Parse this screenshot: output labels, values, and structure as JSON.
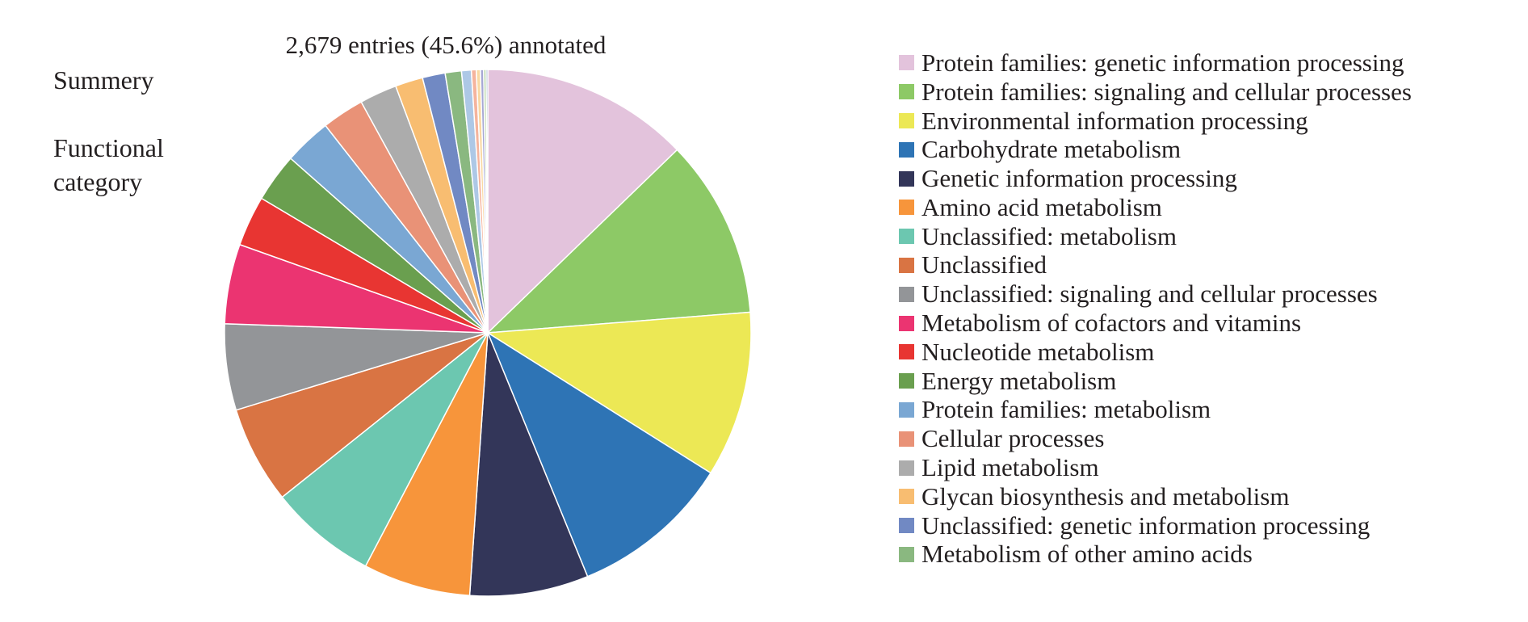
{
  "side_labels": {
    "summery": "Summery",
    "functional_category": "Functional category"
  },
  "chart_data": {
    "type": "pie",
    "title": "2,679 entries (45.6%) annotated",
    "start": "12 o'clock",
    "direction": "clockwise",
    "slices": [
      {
        "label": "Protein families: genetic information processing",
        "value": 12.8,
        "color": "#e3c3dc"
      },
      {
        "label": "Protein families: signaling and cellular processes",
        "value": 11.0,
        "color": "#8dc966"
      },
      {
        "label": "Environmental information processing",
        "value": 10.2,
        "color": "#ece855"
      },
      {
        "label": "Carbohydrate metabolism",
        "value": 9.9,
        "color": "#2e74b5"
      },
      {
        "label": "Genetic information processing",
        "value": 7.3,
        "color": "#333659"
      },
      {
        "label": "Amino acid metabolism",
        "value": 6.6,
        "color": "#f7953b"
      },
      {
        "label": "Unclassified: metabolism",
        "value": 6.6,
        "color": "#6cc7b0"
      },
      {
        "label": "Unclassified",
        "value": 6.0,
        "color": "#d97443"
      },
      {
        "label": "Unclassified: signaling and cellular processes",
        "value": 5.3,
        "color": "#939598"
      },
      {
        "label": "Metabolism of cofactors and vitamins",
        "value": 4.9,
        "color": "#eb3471"
      },
      {
        "label": "Nucleotide metabolism",
        "value": 3.1,
        "color": "#e83532"
      },
      {
        "label": "Energy metabolism",
        "value": 3.0,
        "color": "#6a9f4f"
      },
      {
        "label": "Protein families: metabolism",
        "value": 2.9,
        "color": "#7aa7d3"
      },
      {
        "label": "Cellular processes",
        "value": 2.6,
        "color": "#e99277"
      },
      {
        "label": "Lipid metabolism",
        "value": 2.3,
        "color": "#acacac"
      },
      {
        "label": "Glycan biosynthesis and metabolism",
        "value": 1.7,
        "color": "#f8bd71"
      },
      {
        "label": "Unclassified: genetic information processing",
        "value": 1.4,
        "color": "#7189c3"
      },
      {
        "label": "Metabolism of other amino acids",
        "value": 1.0,
        "color": "#8ab880"
      },
      {
        "label": "",
        "value": 0.6,
        "color": "#adc8e6"
      },
      {
        "label": "",
        "value": 0.3,
        "color": "#f5b49d"
      },
      {
        "label": "",
        "value": 0.25,
        "color": "#f9d9a3"
      },
      {
        "label": "",
        "value": 0.2,
        "color": "#a6a8d4"
      },
      {
        "label": "",
        "value": 0.15,
        "color": "#b4d4a4"
      },
      {
        "label": "",
        "value": 0.1,
        "color": "#7a8fb8"
      }
    ],
    "legend_position": "right"
  }
}
